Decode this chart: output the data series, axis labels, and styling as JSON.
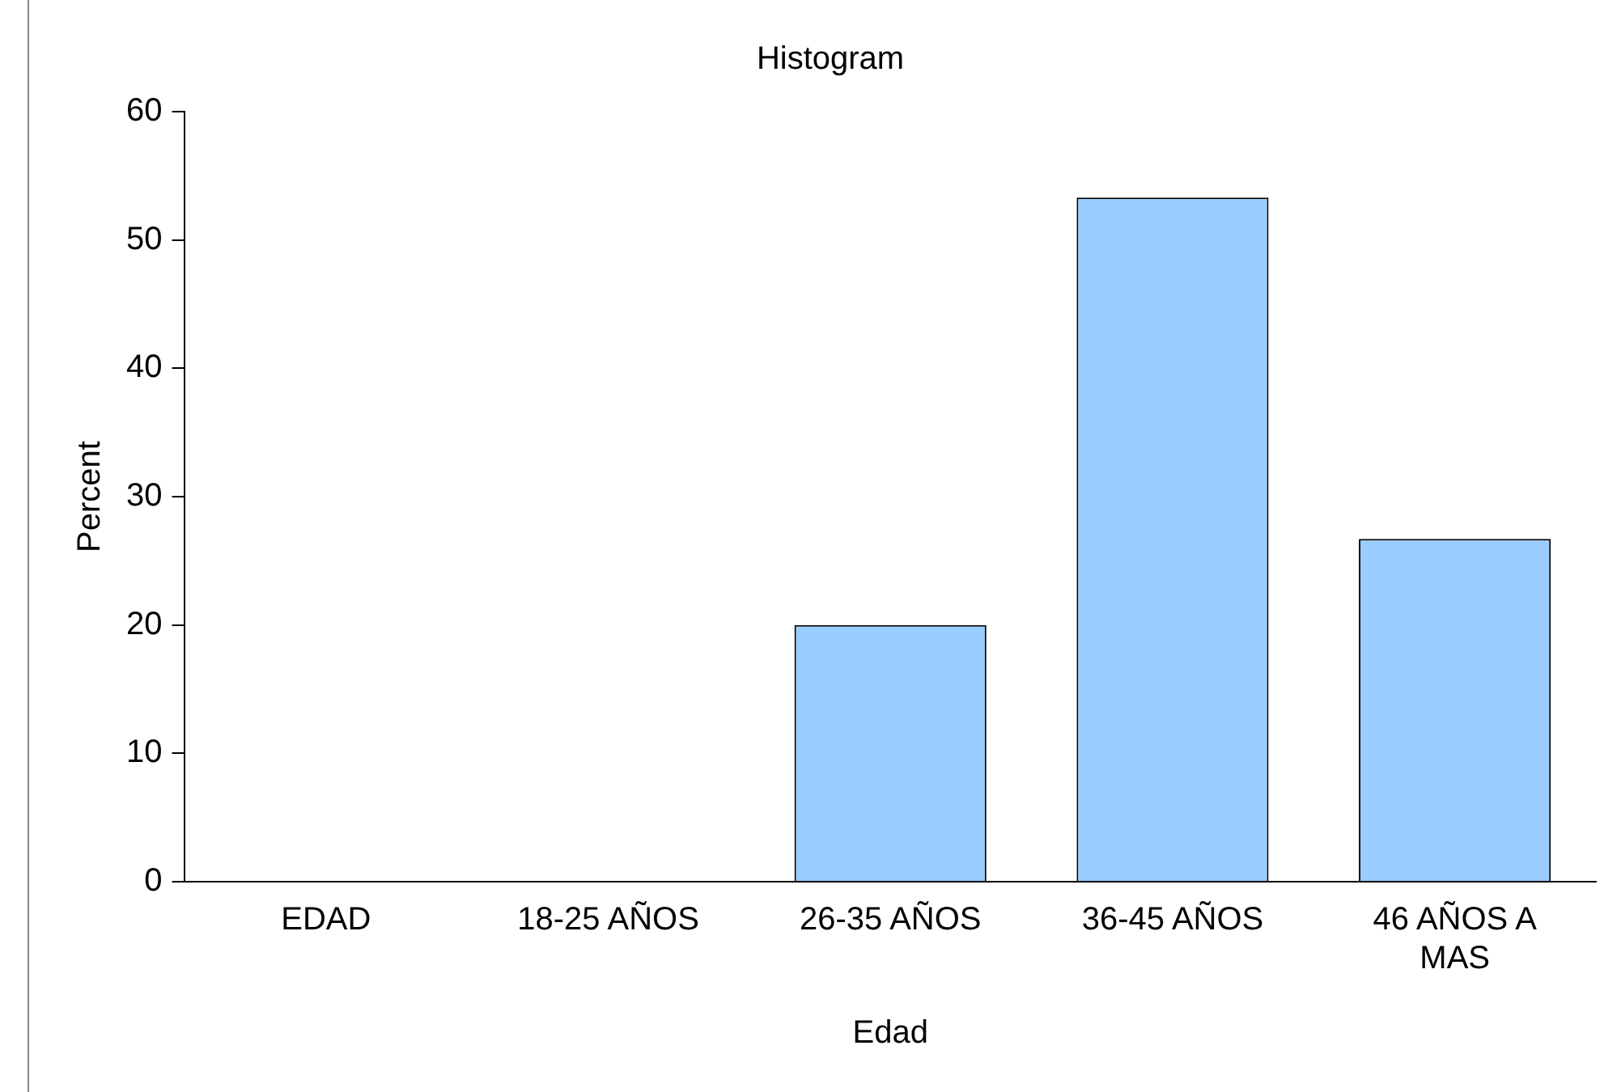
{
  "chart_data": {
    "type": "bar",
    "title": "Histogram",
    "xlabel": "Edad",
    "ylabel": "Percent",
    "categories": [
      "EDAD",
      "18-25 AÑOS",
      "26-35 AÑOS",
      "36-45 AÑOS",
      "46 AÑOS A MAS"
    ],
    "values": [
      0,
      0,
      20,
      53.3,
      26.7
    ],
    "color": "#99ccff",
    "ylim": [
      0,
      60
    ],
    "yticks": [
      0,
      10,
      20,
      30,
      40,
      50,
      60
    ],
    "grid": false,
    "legend": false
  }
}
